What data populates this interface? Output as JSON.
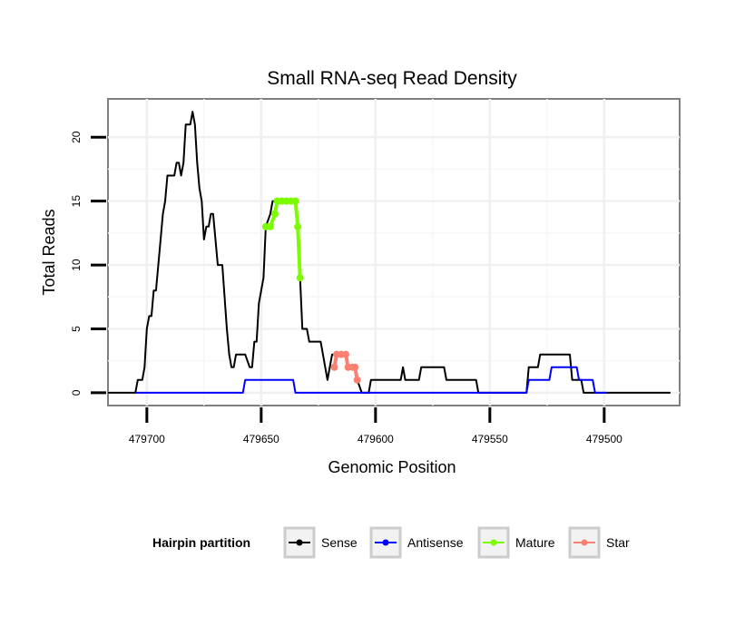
{
  "chart_data": {
    "type": "line",
    "title": "Small RNA-seq Read Density",
    "xlabel": "Genomic Position",
    "ylabel": "Total Reads",
    "xlim": [
      479717,
      479467
    ],
    "ylim": [
      -1,
      23
    ],
    "x_reversed": true,
    "grid": true,
    "xticks": [
      479700,
      479650,
      479600,
      479550,
      479500
    ],
    "yticks": [
      0,
      5,
      10,
      15,
      20
    ],
    "legend": {
      "title": "Hairpin partition",
      "position": "bottom",
      "entries": [
        {
          "label": "Sense",
          "color": "#000000"
        },
        {
          "label": "Antisense",
          "color": "#0000ff"
        },
        {
          "label": "Mature",
          "color": "#7cfc00"
        },
        {
          "label": "Star",
          "color": "#fa8072"
        }
      ]
    },
    "series": [
      {
        "name": "Sense",
        "color": "#000000",
        "markers": false,
        "points": [
          [
            479717,
            0
          ],
          [
            479705,
            0
          ],
          [
            479704,
            1
          ],
          [
            479702,
            1
          ],
          [
            479701,
            2
          ],
          [
            479700,
            5
          ],
          [
            479699,
            6
          ],
          [
            479698,
            6
          ],
          [
            479697,
            8
          ],
          [
            479696,
            8
          ],
          [
            479694,
            12
          ],
          [
            479693,
            14
          ],
          [
            479692,
            15
          ],
          [
            479691,
            17
          ],
          [
            479688,
            17
          ],
          [
            479687,
            18
          ],
          [
            479686,
            18
          ],
          [
            479685,
            17
          ],
          [
            479684,
            18
          ],
          [
            479683,
            21
          ],
          [
            479681,
            21
          ],
          [
            479680,
            22
          ],
          [
            479679,
            21
          ],
          [
            479678,
            18
          ],
          [
            479677,
            16
          ],
          [
            479676,
            15
          ],
          [
            479675,
            12
          ],
          [
            479674,
            13
          ],
          [
            479673,
            13
          ],
          [
            479672,
            14
          ],
          [
            479671,
            14
          ],
          [
            479669,
            10
          ],
          [
            479667,
            10
          ],
          [
            479665,
            5
          ],
          [
            479664,
            3
          ],
          [
            479663,
            2
          ],
          [
            479662,
            2
          ],
          [
            479661,
            3
          ],
          [
            479657,
            3
          ],
          [
            479655,
            2
          ],
          [
            479654,
            2
          ],
          [
            479653,
            4
          ],
          [
            479652,
            4
          ],
          [
            479651,
            7
          ],
          [
            479649,
            9
          ],
          [
            479648,
            13
          ],
          [
            479646,
            14
          ],
          [
            479645,
            15
          ],
          [
            479635,
            15
          ],
          [
            479634,
            13
          ],
          [
            479633,
            9
          ],
          [
            479632,
            5
          ],
          [
            479630,
            5
          ],
          [
            479629,
            4
          ],
          [
            479624,
            4
          ],
          [
            479623,
            3
          ],
          [
            479622,
            2
          ],
          [
            479621,
            1
          ],
          [
            479620,
            2
          ],
          [
            479619,
            3
          ],
          [
            479613,
            3
          ],
          [
            479612,
            2
          ],
          [
            479609,
            2
          ],
          [
            479608,
            1
          ],
          [
            479606,
            0
          ],
          [
            479603,
            0
          ],
          [
            479602,
            1
          ],
          [
            479589,
            1
          ],
          [
            479588,
            2
          ],
          [
            479587,
            1
          ],
          [
            479581,
            1
          ],
          [
            479580,
            2
          ],
          [
            479570,
            2
          ],
          [
            479569,
            1
          ],
          [
            479556,
            1
          ],
          [
            479555,
            0
          ],
          [
            479534,
            0
          ],
          [
            479533,
            2
          ],
          [
            479529,
            2
          ],
          [
            479528,
            3
          ],
          [
            479515,
            3
          ],
          [
            479514,
            1
          ],
          [
            479510,
            1
          ],
          [
            479509,
            0
          ],
          [
            479471,
            0
          ]
        ]
      },
      {
        "name": "Antisense",
        "color": "#0000ff",
        "markers": false,
        "points": [
          [
            479705,
            0
          ],
          [
            479658,
            0
          ],
          [
            479657,
            1
          ],
          [
            479636,
            1
          ],
          [
            479635,
            0
          ],
          [
            479534,
            0
          ],
          [
            479533,
            1
          ],
          [
            479524,
            1
          ],
          [
            479523,
            2
          ],
          [
            479512,
            2
          ],
          [
            479511,
            1
          ],
          [
            479505,
            1
          ],
          [
            479504,
            0
          ],
          [
            479499,
            0
          ]
        ]
      },
      {
        "name": "Mature",
        "color": "#7cfc00",
        "markers": true,
        "points": [
          [
            479648,
            13
          ],
          [
            479646,
            13
          ],
          [
            479644,
            14
          ],
          [
            479643,
            15
          ],
          [
            479641,
            15
          ],
          [
            479639,
            15
          ],
          [
            479637,
            15
          ],
          [
            479635,
            15
          ],
          [
            479634,
            13
          ],
          [
            479633,
            9
          ]
        ]
      },
      {
        "name": "Star",
        "color": "#fa8072",
        "markers": true,
        "points": [
          [
            479618,
            2
          ],
          [
            479617,
            3
          ],
          [
            479615,
            3
          ],
          [
            479613,
            3
          ],
          [
            479612,
            2
          ],
          [
            479610,
            2
          ],
          [
            479609,
            2
          ],
          [
            479608,
            1
          ]
        ]
      }
    ]
  }
}
